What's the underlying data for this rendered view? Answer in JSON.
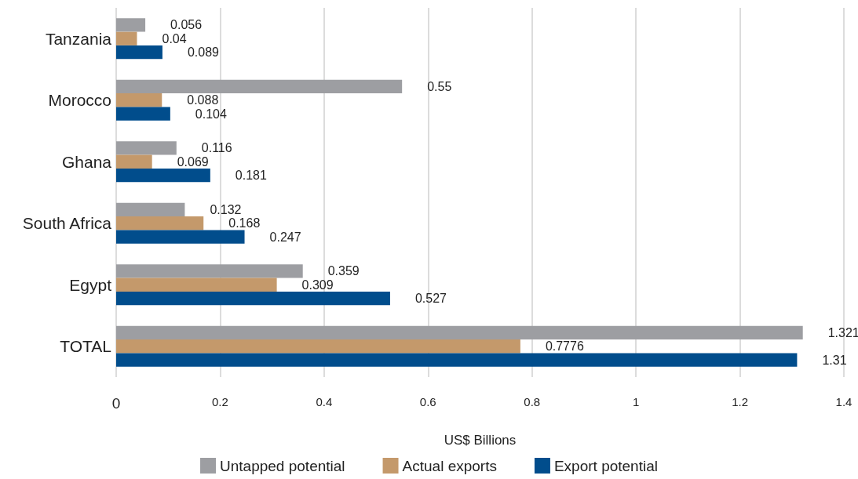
{
  "chart_data": {
    "type": "bar",
    "orientation": "horizontal",
    "categories": [
      "Tanzania",
      "Morocco",
      "Ghana",
      "South Africa",
      "Egypt",
      "TOTAL"
    ],
    "series": [
      {
        "name": "Untapped potential",
        "color": "#9d9ea2",
        "values": [
          0.056,
          0.55,
          0.116,
          0.132,
          0.359,
          1.321
        ]
      },
      {
        "name": "Actual exports",
        "color": "#c4996b",
        "values": [
          0.04,
          0.088,
          0.069,
          0.168,
          0.309,
          0.7776
        ]
      },
      {
        "name": "Export potential",
        "color": "#014d8c",
        "values": [
          0.089,
          0.104,
          0.181,
          0.247,
          0.527,
          1.31
        ]
      }
    ],
    "xlabel": "US$ Billions",
    "xlim": [
      0,
      1.4
    ],
    "xticks": [
      0,
      0.2,
      0.4,
      0.6,
      0.8,
      1,
      1.2,
      1.4
    ],
    "grid": "x",
    "legend": "bottom",
    "data_labels": true
  }
}
